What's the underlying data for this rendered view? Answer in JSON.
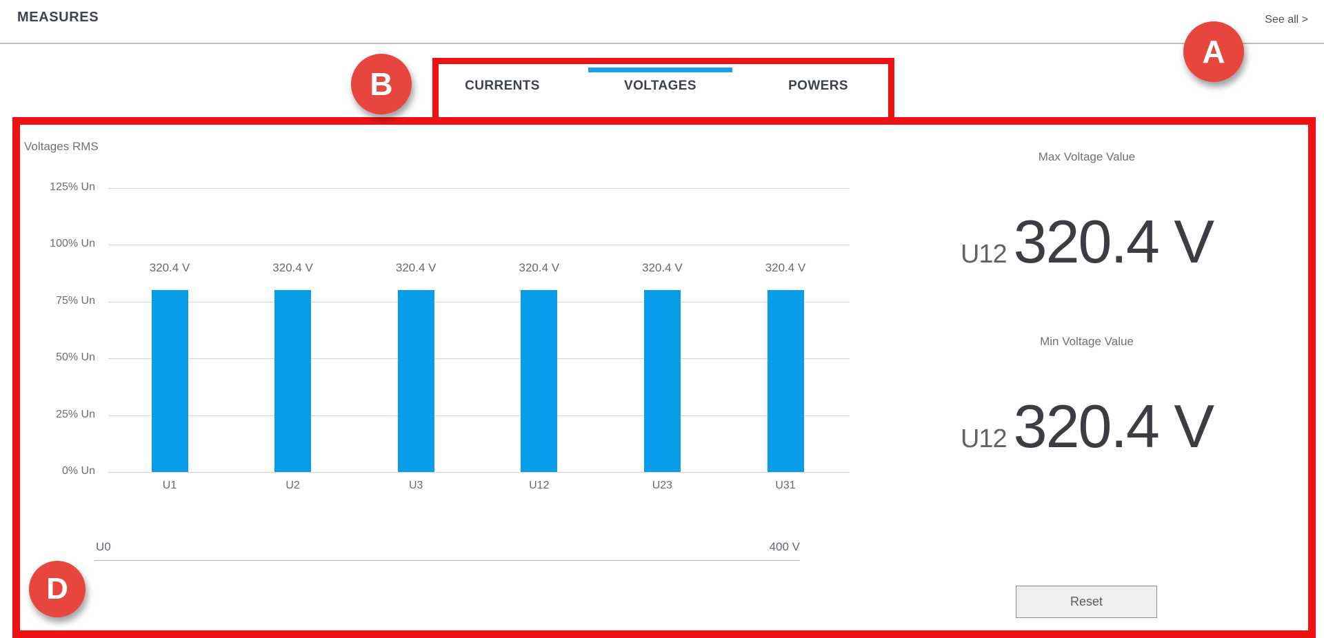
{
  "header": {
    "title": "MEASURES",
    "see_all_label": "See all >"
  },
  "tabs": {
    "items": [
      {
        "label": "CURRENTS",
        "active": false
      },
      {
        "label": "VOLTAGES",
        "active": true
      },
      {
        "label": "POWERS",
        "active": false
      }
    ],
    "active_indicator_color": "#18a0e8"
  },
  "chart_data": {
    "type": "bar",
    "title": "Voltages RMS",
    "categories": [
      "U1",
      "U2",
      "U3",
      "U12",
      "U23",
      "U31"
    ],
    "values": [
      320.4,
      320.4,
      320.4,
      320.4,
      320.4,
      320.4
    ],
    "value_labels": [
      "320.4 V",
      "320.4 V",
      "320.4 V",
      "320.4 V",
      "320.4 V",
      "320.4 V"
    ],
    "unit": "V",
    "nominal_voltage": 400,
    "ylabel": "",
    "xlabel": "",
    "yticks_pct": [
      0,
      25,
      50,
      75,
      100,
      125
    ],
    "ytick_labels": [
      "0% Un",
      "25% Un",
      "50% Un",
      "75% Un",
      "100% Un",
      "125% Un"
    ],
    "ylim_pct": [
      0,
      125
    ],
    "grid": true,
    "bar_color": "#089de8"
  },
  "u0_gauge": {
    "label": "U0",
    "max_label": "400 V"
  },
  "stats": {
    "max": {
      "title": "Max Voltage Value",
      "channel": "U12",
      "value": "320.4 V"
    },
    "min": {
      "title": "Min Voltage Value",
      "channel": "U12",
      "value": "320.4 V"
    }
  },
  "reset_button_label": "Reset",
  "annotations": {
    "circles": [
      {
        "label": "A"
      },
      {
        "label": "B"
      },
      {
        "label": "D"
      }
    ],
    "color_box": "#ee1312",
    "color_circle": "#e7463f"
  }
}
